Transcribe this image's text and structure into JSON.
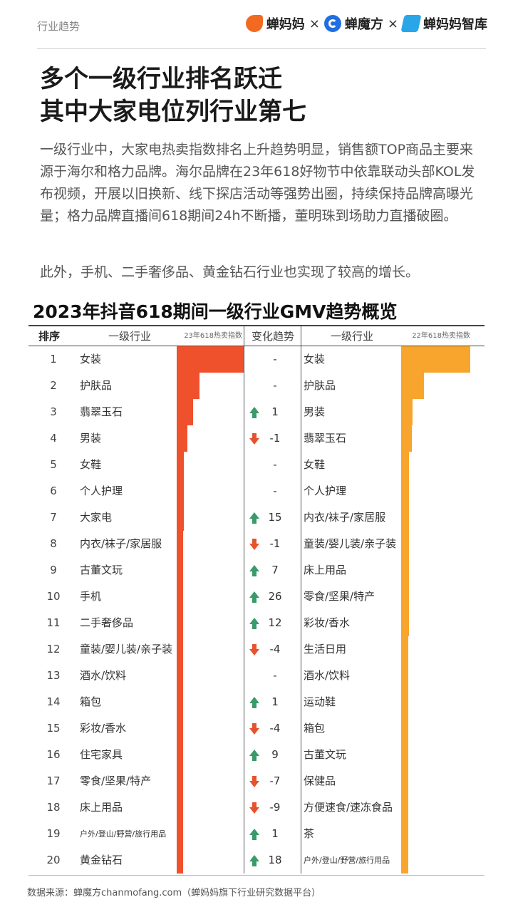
{
  "header": {
    "section_tag": "行业趋势",
    "brands": [
      {
        "name": "蝉妈妈",
        "icon": "orange-cicada-logo-icon"
      },
      {
        "name": "蝉魔方",
        "icon": "blue-cube-logo-icon"
      },
      {
        "name": "蝉妈妈智库",
        "icon": "sky-wing-logo-icon"
      }
    ],
    "separator": "×"
  },
  "headline": {
    "line1": "多个一级行业排名跃迁",
    "line2": "其中大家电位列行业第七"
  },
  "body": {
    "para1": "一级行业中，大家电热卖指数排名上升趋势明显，销售额TOP商品主要来源于海尔和格力品牌。海尔品牌在23年618好物节中依靠联动头部KOL发布视频，开展以旧换新、线下探店活动等强势出圈，持续保持品牌高曝光量；格力品牌直播间618期间24h不断播，董明珠到场助力直播破圈。",
    "para2": "此外，手机、二手奢侈品、黄金钻石行业也实现了较高的增长。"
  },
  "chart_data": {
    "type": "table",
    "title": "2023年抖音618期间一级行业GMV趋势概览",
    "columns": [
      "排序",
      "一级行业",
      "23年618热卖指数",
      "变化趋势",
      "一级行业",
      "22年618热卖指数"
    ],
    "colors": {
      "bar23": "#f0512d",
      "bar22": "#f7a52c",
      "up": "#3a9a6a",
      "down": "#e5532d"
    },
    "rows": [
      {
        "rank": "1",
        "industry23": "女装",
        "index23": 100,
        "dir": "none",
        "change": "-",
        "industry22": "女装",
        "index22": 100
      },
      {
        "rank": "2",
        "industry23": "护肤品",
        "index23": 34,
        "dir": "none",
        "change": "-",
        "industry22": "护肤品",
        "index22": 33
      },
      {
        "rank": "3",
        "industry23": "翡翠玉石",
        "index23": 24,
        "dir": "up",
        "change": "1",
        "industry22": "男装",
        "index22": 17
      },
      {
        "rank": "4",
        "industry23": "男装",
        "index23": 16,
        "dir": "down",
        "change": "-1",
        "industry22": "翡翠玉石",
        "index22": 15
      },
      {
        "rank": "5",
        "industry23": "女鞋",
        "index23": 11,
        "dir": "none",
        "change": "-",
        "industry22": "女鞋",
        "index22": 11
      },
      {
        "rank": "6",
        "industry23": "个人护理",
        "index23": 11,
        "dir": "none",
        "change": "-",
        "industry22": "个人护理",
        "index22": 11
      },
      {
        "rank": "7",
        "industry23": "大家电",
        "index23": 11,
        "dir": "up",
        "change": "15",
        "industry22": "内衣/袜子/家居服",
        "index22": 11
      },
      {
        "rank": "8",
        "industry23": "内衣/袜子/家居服",
        "index23": 10,
        "dir": "down",
        "change": "-1",
        "industry22": "童装/婴儿装/亲子装",
        "index22": 11
      },
      {
        "rank": "9",
        "industry23": "古董文玩",
        "index23": 10,
        "dir": "up",
        "change": "7",
        "industry22": "床上用品",
        "index22": 11
      },
      {
        "rank": "10",
        "industry23": "手机",
        "index23": 10,
        "dir": "up",
        "change": "26",
        "industry22": "零食/坚果/特产",
        "index22": 11
      },
      {
        "rank": "11",
        "industry23": "二手奢侈品",
        "index23": 10,
        "dir": "up",
        "change": "12",
        "industry22": "彩妆/香水",
        "index22": 11
      },
      {
        "rank": "12",
        "industry23": "童装/婴儿装/亲子装",
        "index23": 10,
        "dir": "down",
        "change": "-4",
        "industry22": "生活日用",
        "index22": 10
      },
      {
        "rank": "13",
        "industry23": "酒水/饮料",
        "index23": 10,
        "dir": "none",
        "change": "-",
        "industry22": "酒水/饮料",
        "index22": 10
      },
      {
        "rank": "14",
        "industry23": "箱包",
        "index23": 10,
        "dir": "up",
        "change": "1",
        "industry22": "运动鞋",
        "index22": 10
      },
      {
        "rank": "15",
        "industry23": "彩妆/香水",
        "index23": 10,
        "dir": "down",
        "change": "-4",
        "industry22": "箱包",
        "index22": 10
      },
      {
        "rank": "16",
        "industry23": "住宅家具",
        "index23": 10,
        "dir": "up",
        "change": "9",
        "industry22": "古董文玩",
        "index22": 10
      },
      {
        "rank": "17",
        "industry23": "零食/坚果/特产",
        "index23": 10,
        "dir": "down",
        "change": "-7",
        "industry22": "保健品",
        "index22": 10
      },
      {
        "rank": "18",
        "industry23": "床上用品",
        "index23": 10,
        "dir": "down",
        "change": "-9",
        "industry22": "方便速食/速冻食品",
        "index22": 10
      },
      {
        "rank": "19",
        "industry23": "户外/登山/野营/旅行用品",
        "index23": 10,
        "dir": "up",
        "change": "1",
        "industry22": "茶",
        "index22": 10
      },
      {
        "rank": "20",
        "industry23": "黄金钻石",
        "index23": 10,
        "dir": "up",
        "change": "18",
        "industry22": "户外/登山/野营/旅行用品",
        "index22": 10
      }
    ]
  },
  "footer": {
    "source": "数据来源：蝉魔方chanmofang.com（蝉妈妈旗下行业研究数据平台）"
  }
}
